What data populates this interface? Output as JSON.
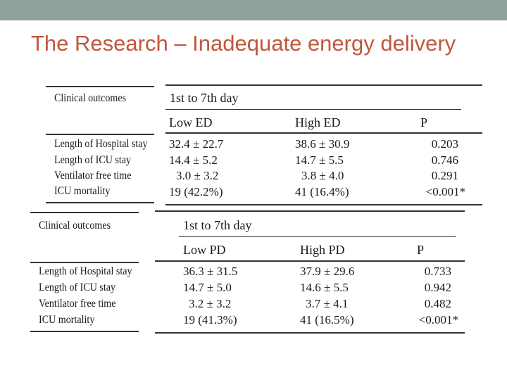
{
  "slide": {
    "title": "The Research – Inadequate energy delivery",
    "topbar_color": "#8fa39b",
    "title_color": "#c0573d"
  },
  "table_ed": {
    "row_header": "Clinical outcomes",
    "period": "1st to 7th day",
    "columns": [
      "Low ED",
      "High ED",
      "P"
    ],
    "rows": [
      {
        "label": "Length of Hospital stay",
        "low": "32.4 ± 22.7",
        "high": "38.6 ± 30.9",
        "p": "0.203"
      },
      {
        "label": "Length of ICU stay",
        "low": "14.4 ± 5.2",
        "high": "14.7 ± 5.5",
        "p": "0.746"
      },
      {
        "label": "Ventilator free time",
        "low": "3.0 ± 3.2",
        "high": "3.8 ± 4.0",
        "p": "0.291"
      },
      {
        "label": "ICU mortality",
        "low": "19 (42.2%)",
        "high": "41 (16.4%)",
        "p": "<0.001*"
      }
    ]
  },
  "table_pd": {
    "row_header": "Clinical outcomes",
    "period": "1st to 7th day",
    "columns": [
      "Low PD",
      "High PD",
      "P"
    ],
    "rows": [
      {
        "label": "Length of Hospital stay",
        "low": "36.3 ± 31.5",
        "high": "37.9 ± 29.6",
        "p": "0.733"
      },
      {
        "label": "Length of ICU stay",
        "low": "14.7 ± 5.0",
        "high": "14.6 ± 5.5",
        "p": "0.942"
      },
      {
        "label": "Ventilator free time",
        "low": "3.2 ± 3.2",
        "high": "3.7 ± 4.1",
        "p": "0.482"
      },
      {
        "label": "ICU mortality",
        "low": "19 (41.3%)",
        "high": "41 (16.5%)",
        "p": "<0.001*"
      }
    ]
  }
}
